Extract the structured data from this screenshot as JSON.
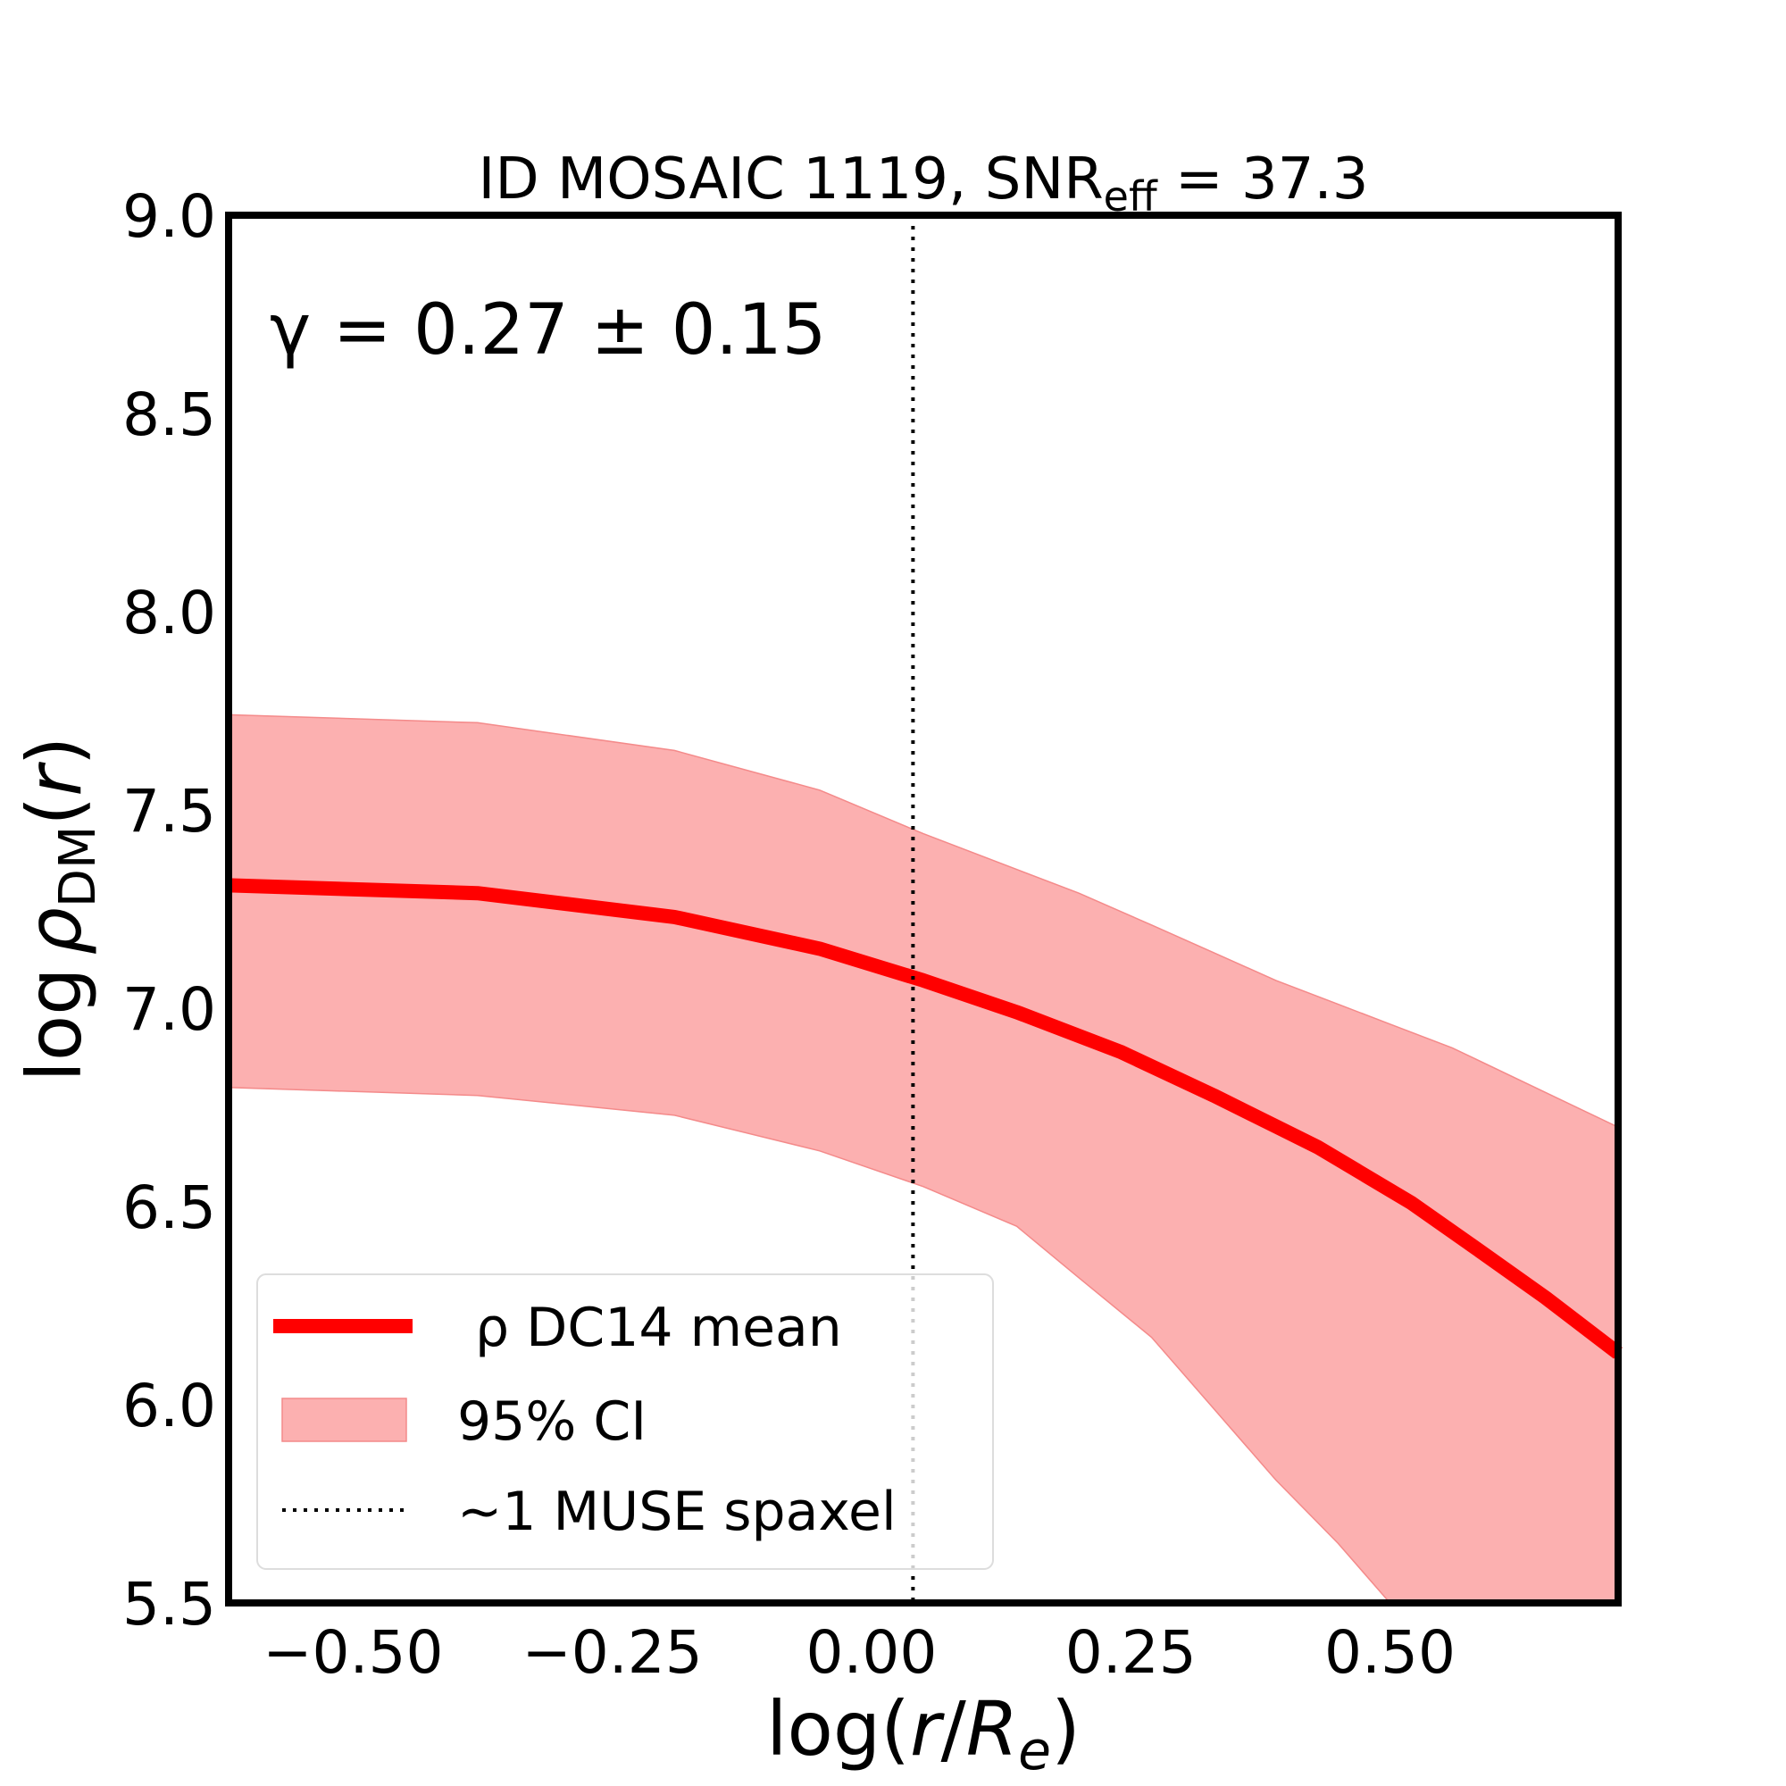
{
  "chart_data": {
    "type": "line",
    "title": {
      "main": "ID MOSAIC 1119, SNR",
      "sub": "eff",
      "tail": " = 37.3"
    },
    "xlabel": {
      "pre": "log(",
      "r": "r",
      "slash": "/",
      "R": "R",
      "sub": "e",
      "post": ")"
    },
    "ylabel": {
      "log": "log",
      "rho": "ρ",
      "sub": "DM",
      "open": "(",
      "r": "r",
      "close": ")"
    },
    "xlim": [
      -0.62,
      0.72
    ],
    "ylim": [
      5.5,
      9.0
    ],
    "xticks": [
      -0.5,
      -0.25,
      0.0,
      0.25,
      0.5
    ],
    "xtick_labels": [
      "−0.50",
      "−0.25",
      "0.00",
      "0.25",
      "0.50"
    ],
    "yticks": [
      5.5,
      6.0,
      6.5,
      7.0,
      7.5,
      8.0,
      8.5,
      9.0
    ],
    "ytick_labels": [
      "5.5",
      "6.0",
      "6.5",
      "7.0",
      "7.5",
      "8.0",
      "8.5",
      "9.0"
    ],
    "annotation": "γ = 0.27 ± 0.15",
    "series": [
      {
        "name": "ρ DC14 mean",
        "color": "#ff0000",
        "x": [
          -0.62,
          -0.38,
          -0.19,
          -0.05,
          0.05,
          0.14,
          0.24,
          0.33,
          0.43,
          0.52,
          0.58,
          0.65,
          0.72
        ],
        "y": [
          7.31,
          7.29,
          7.23,
          7.15,
          7.07,
          6.99,
          6.89,
          6.78,
          6.65,
          6.51,
          6.4,
          6.27,
          6.13
        ]
      }
    ],
    "band": {
      "name": "95% CI",
      "color": "#fcb0b0",
      "x": [
        -0.62,
        -0.38,
        -0.19,
        -0.05,
        0.05,
        0.14,
        0.2,
        0.27,
        0.33,
        0.39,
        0.45,
        0.5,
        0.56,
        0.64,
        0.72
      ],
      "upper": [
        7.74,
        7.72,
        7.65,
        7.55,
        7.44,
        7.35,
        7.29,
        7.21,
        7.14,
        7.07,
        7.01,
        6.96,
        6.9,
        6.8,
        6.7
      ],
      "lower": [
        6.8,
        6.78,
        6.73,
        6.64,
        6.55,
        6.45,
        6.32,
        6.17,
        5.99,
        5.81,
        5.65,
        5.5,
        5.5,
        5.5,
        5.5
      ]
    },
    "vline": {
      "name": "~1 MUSE spaxel",
      "x": 0.04,
      "style": "dotted"
    },
    "legend": {
      "position": "lower-left",
      "entries": [
        {
          "label": "ρ DC14 mean",
          "kind": "line"
        },
        {
          "label": "95% CI",
          "kind": "patch"
        },
        {
          "label": "~1 MUSE spaxel",
          "kind": "dotted"
        }
      ]
    }
  }
}
